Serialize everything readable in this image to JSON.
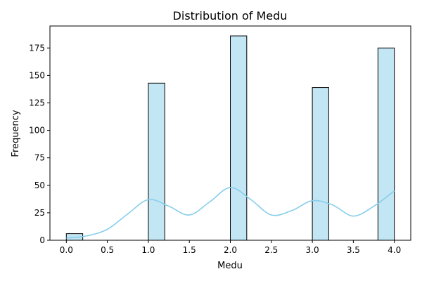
{
  "chart_data": {
    "type": "bar",
    "title": "Distribution of Medu",
    "xlabel": "Medu",
    "ylabel": "Frequency",
    "xlim": [
      -0.2,
      4.2
    ],
    "ylim": [
      0,
      195
    ],
    "xticks": [
      0.0,
      0.5,
      1.0,
      1.5,
      2.0,
      2.5,
      3.0,
      3.5,
      4.0
    ],
    "xtick_labels": [
      "0.0",
      "0.5",
      "1.0",
      "1.5",
      "2.0",
      "2.5",
      "3.0",
      "3.5",
      "4.0"
    ],
    "yticks": [
      0,
      25,
      50,
      75,
      100,
      125,
      150,
      175
    ],
    "ytick_labels": [
      "0",
      "25",
      "50",
      "75",
      "100",
      "125",
      "150",
      "175"
    ],
    "bins": [
      {
        "x0": 0.0,
        "x1": 0.2,
        "count": 6
      },
      {
        "x0": 1.0,
        "x1": 1.2,
        "count": 143
      },
      {
        "x0": 2.0,
        "x1": 2.2,
        "count": 186
      },
      {
        "x0": 3.0,
        "x1": 3.2,
        "count": 139
      },
      {
        "x0": 3.8,
        "x1": 4.0,
        "count": 175
      }
    ],
    "kde": {
      "x": [
        0.0,
        0.25,
        0.5,
        0.75,
        1.0,
        1.25,
        1.5,
        1.75,
        2.0,
        2.25,
        2.5,
        2.75,
        3.0,
        3.25,
        3.5,
        3.75,
        4.0
      ],
      "y": [
        2,
        4,
        10,
        24,
        37,
        31,
        23,
        35,
        48,
        37,
        23,
        27,
        36,
        32,
        22,
        31,
        45
      ]
    },
    "grid": false,
    "bar_color": "#c2e6f4",
    "bar_edge_color": "#000000",
    "kde_color": "#87ceeb"
  }
}
